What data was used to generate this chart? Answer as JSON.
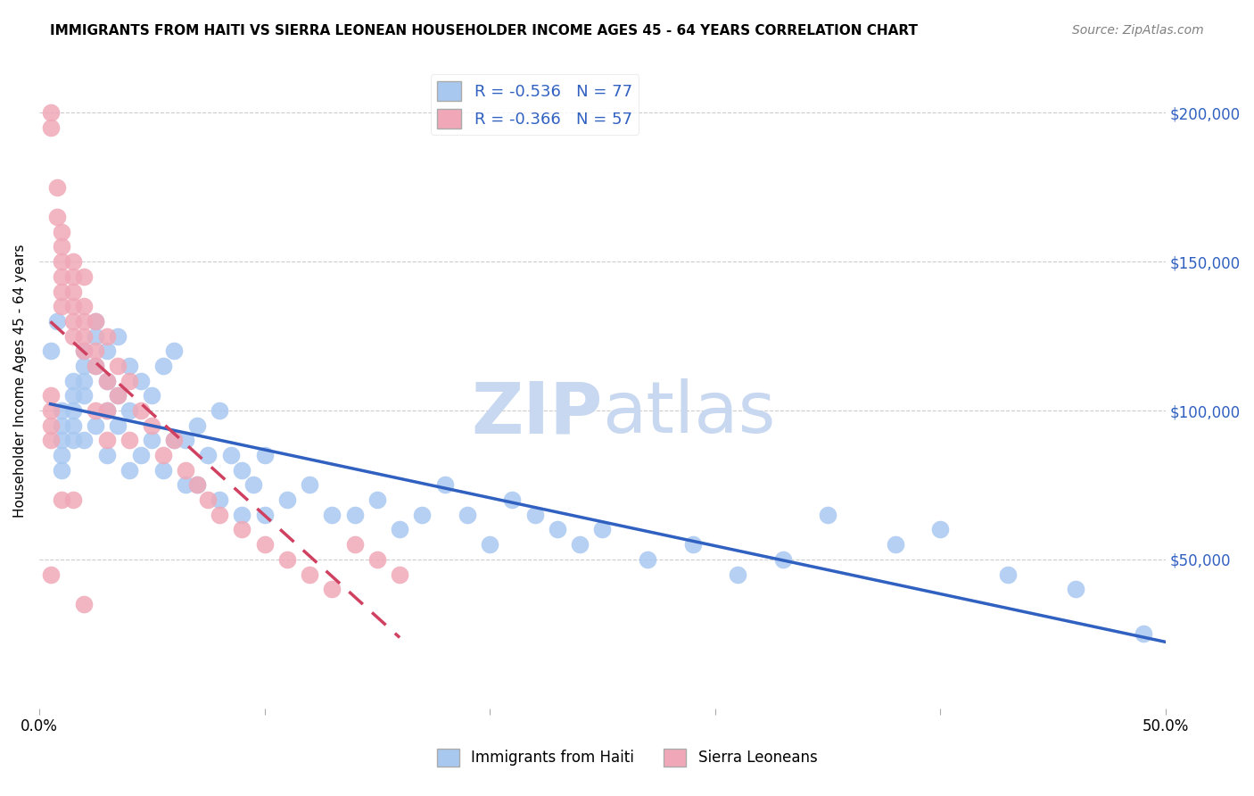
{
  "title": "IMMIGRANTS FROM HAITI VS SIERRA LEONEAN HOUSEHOLDER INCOME AGES 45 - 64 YEARS CORRELATION CHART",
  "source": "Source: ZipAtlas.com",
  "ylabel": "Householder Income Ages 45 - 64 years",
  "xlim": [
    0.0,
    0.5
  ],
  "ylim": [
    0,
    220000
  ],
  "yticks_right": [
    50000,
    100000,
    150000,
    200000
  ],
  "ytick_labels_right": [
    "$50,000",
    "$100,000",
    "$150,000",
    "$200,000"
  ],
  "haiti_R": -0.536,
  "haiti_N": 77,
  "sierra_R": -0.366,
  "sierra_N": 57,
  "haiti_color": "#a8c8f0",
  "sierra_color": "#f0a8b8",
  "haiti_line_color": "#3060c0",
  "sierra_line_color": "#d04060",
  "background_color": "#ffffff",
  "watermark_zip": "ZIP",
  "watermark_atlas": "atlas",
  "watermark_color": "#c8d8f0",
  "legend_label_haiti": "Immigrants from Haiti",
  "legend_label_sierra": "Sierra Leoneans",
  "haiti_x": [
    0.01,
    0.01,
    0.01,
    0.01,
    0.01,
    0.015,
    0.015,
    0.015,
    0.015,
    0.015,
    0.02,
    0.02,
    0.02,
    0.02,
    0.02,
    0.025,
    0.025,
    0.025,
    0.025,
    0.03,
    0.03,
    0.03,
    0.03,
    0.035,
    0.035,
    0.035,
    0.04,
    0.04,
    0.04,
    0.045,
    0.045,
    0.05,
    0.05,
    0.055,
    0.055,
    0.06,
    0.06,
    0.065,
    0.065,
    0.07,
    0.07,
    0.075,
    0.08,
    0.08,
    0.085,
    0.09,
    0.09,
    0.095,
    0.1,
    0.1,
    0.11,
    0.12,
    0.13,
    0.14,
    0.15,
    0.16,
    0.17,
    0.18,
    0.19,
    0.2,
    0.21,
    0.22,
    0.23,
    0.24,
    0.25,
    0.27,
    0.29,
    0.31,
    0.33,
    0.35,
    0.38,
    0.4,
    0.43,
    0.46,
    0.49,
    0.005,
    0.008
  ],
  "haiti_y": [
    100000,
    95000,
    90000,
    85000,
    80000,
    110000,
    105000,
    100000,
    95000,
    90000,
    120000,
    115000,
    110000,
    105000,
    90000,
    130000,
    125000,
    115000,
    95000,
    120000,
    110000,
    100000,
    85000,
    125000,
    105000,
    95000,
    115000,
    100000,
    80000,
    110000,
    85000,
    105000,
    90000,
    115000,
    80000,
    120000,
    90000,
    90000,
    75000,
    95000,
    75000,
    85000,
    100000,
    70000,
    85000,
    80000,
    65000,
    75000,
    85000,
    65000,
    70000,
    75000,
    65000,
    65000,
    70000,
    60000,
    65000,
    75000,
    65000,
    55000,
    70000,
    65000,
    60000,
    55000,
    60000,
    50000,
    55000,
    45000,
    50000,
    65000,
    55000,
    60000,
    45000,
    40000,
    25000,
    120000,
    130000
  ],
  "sierra_x": [
    0.005,
    0.005,
    0.008,
    0.008,
    0.01,
    0.01,
    0.01,
    0.01,
    0.01,
    0.01,
    0.015,
    0.015,
    0.015,
    0.015,
    0.015,
    0.015,
    0.02,
    0.02,
    0.02,
    0.02,
    0.02,
    0.025,
    0.025,
    0.025,
    0.03,
    0.03,
    0.03,
    0.035,
    0.035,
    0.04,
    0.04,
    0.045,
    0.05,
    0.055,
    0.06,
    0.065,
    0.07,
    0.075,
    0.08,
    0.09,
    0.1,
    0.11,
    0.12,
    0.13,
    0.14,
    0.15,
    0.16,
    0.005,
    0.005,
    0.005,
    0.005,
    0.005,
    0.01,
    0.015,
    0.02,
    0.025,
    0.03
  ],
  "sierra_y": [
    200000,
    195000,
    175000,
    165000,
    160000,
    155000,
    150000,
    145000,
    140000,
    135000,
    150000,
    145000,
    140000,
    135000,
    130000,
    125000,
    145000,
    135000,
    130000,
    125000,
    120000,
    130000,
    120000,
    115000,
    125000,
    110000,
    100000,
    115000,
    105000,
    110000,
    90000,
    100000,
    95000,
    85000,
    90000,
    80000,
    75000,
    70000,
    65000,
    60000,
    55000,
    50000,
    45000,
    40000,
    55000,
    50000,
    45000,
    105000,
    100000,
    95000,
    90000,
    45000,
    70000,
    70000,
    35000,
    100000,
    90000
  ]
}
